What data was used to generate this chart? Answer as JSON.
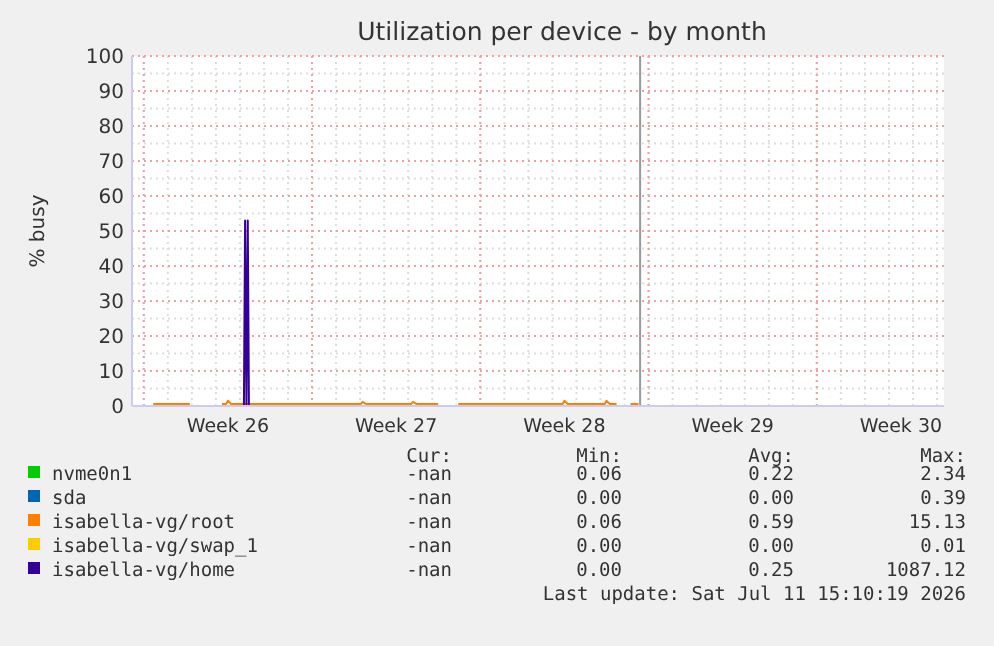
{
  "chart_data": {
    "type": "line",
    "title": "Utilization per device - by month",
    "ylabel": "% busy",
    "xlim": [
      "2026-06-21T12:15",
      "2026-07-25T07:00"
    ],
    "ylim": [
      0,
      100
    ],
    "xticks": [
      {
        "value": "2026-06-22",
        "label": null
      },
      {
        "value": "2026-06-25T12:00",
        "label": "Week 26"
      },
      {
        "value": "2026-06-29",
        "label": null
      },
      {
        "value": "2026-07-02T12:00",
        "label": "Week 27"
      },
      {
        "value": "2026-07-06",
        "label": null
      },
      {
        "value": "2026-07-09T12:00",
        "label": "Week 28"
      },
      {
        "value": "2026-07-13",
        "label": null
      },
      {
        "value": "2026-07-16T12:00",
        "label": "Week 29"
      },
      {
        "value": "2026-07-20",
        "label": null
      },
      {
        "value": "2026-07-23T12:00",
        "label": "Week 30"
      }
    ],
    "yticks": [
      0,
      10,
      20,
      30,
      40,
      50,
      60,
      70,
      80,
      90,
      100
    ],
    "grid": true,
    "legend": "bottom",
    "ref_lines": [
      {
        "axis": "x",
        "value": "2026-07-12T15:35",
        "color": "#999999"
      }
    ],
    "series": [
      {
        "name": "nvme0n1",
        "color": "#00cc00"
      },
      {
        "name": "sda",
        "color": "#0066b3"
      },
      {
        "name": "isabella-vg/root",
        "color": "#ff8000",
        "x": [
          "2026-06-22T09:25",
          "2026-06-23T22:00",
          "2026-06-24T02:25",
          "2026-06-25T06:00",
          "2026-06-25T10:20",
          "2026-06-25T12:00",
          "2026-06-25T15:20",
          "2026-06-27T07:20",
          "2026-06-27T11:20",
          "2026-07-01T00:45",
          "2026-07-01T02:25",
          "2026-07-01T05:45",
          "2026-07-03T03:05",
          "2026-07-03T04:50",
          "2026-07-03T08:10",
          "2026-07-04T06:00",
          "2026-07-04T14:25",
          "2026-07-05T02:00",
          "2026-07-09T10:20",
          "2026-07-09T12:00",
          "2026-07-09T15:20",
          "2026-07-11T04:20",
          "2026-07-11T06:00",
          "2026-07-11T09:20",
          "2026-07-11T16:05",
          "2026-07-11T21:05",
          "2026-07-12T06:00",
          "2026-07-12T14:00"
        ],
        "values": [
          0.6,
          0.6,
          null,
          0.6,
          0.6,
          1.5,
          0.6,
          0.6,
          0.6,
          0.6,
          1.2,
          0.6,
          0.6,
          1.2,
          0.6,
          0.6,
          null,
          0.6,
          0.6,
          1.5,
          0.6,
          0.6,
          1.5,
          0.6,
          0.6,
          null,
          0.6,
          0.6
        ]
      },
      {
        "name": "isabella-vg/swap_1",
        "color": "#ffcc00"
      },
      {
        "name": "isabella-vg/home",
        "color": "#330099",
        "x": [
          "2026-06-26T04:00",
          "2026-06-26T05:10",
          "2026-06-26T06:30",
          "2026-06-26T07:50",
          "2026-06-26T09:00"
        ],
        "values": [
          0,
          53,
          0,
          53,
          0
        ]
      }
    ],
    "annotations": [
      "Cur:",
      "Min:",
      "Avg:",
      "Max:",
      "-nan",
      "0.06",
      "0.22",
      "2.34",
      "-nan",
      "0.00",
      "0.00",
      "0.39",
      "-nan",
      "0.06",
      "0.59",
      "15.13",
      "-nan",
      "0.00",
      "0.00",
      "0.01",
      "-nan",
      "0.00",
      "0.25",
      "1087.12",
      "Last update: Sat Jul 11 15:10:19 2026"
    ]
  }
}
